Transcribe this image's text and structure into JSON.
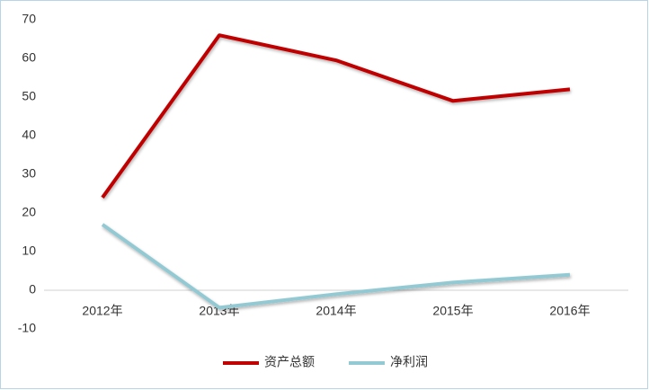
{
  "chart_data": {
    "type": "line",
    "categories": [
      "2012年",
      "2013年",
      "2014年",
      "2015年",
      "2016年"
    ],
    "series": [
      {
        "name": "资产总额",
        "color": "#c00000",
        "values": [
          24,
          66,
          59.5,
          49,
          52
        ]
      },
      {
        "name": "净利润",
        "color": "#92c9d3",
        "values": [
          17,
          -4.5,
          -1,
          2,
          4
        ]
      }
    ],
    "ylim": [
      -10,
      70
    ],
    "yticks": [
      -10,
      0,
      10,
      20,
      30,
      40,
      50,
      60,
      70
    ],
    "legend": "bottom"
  }
}
